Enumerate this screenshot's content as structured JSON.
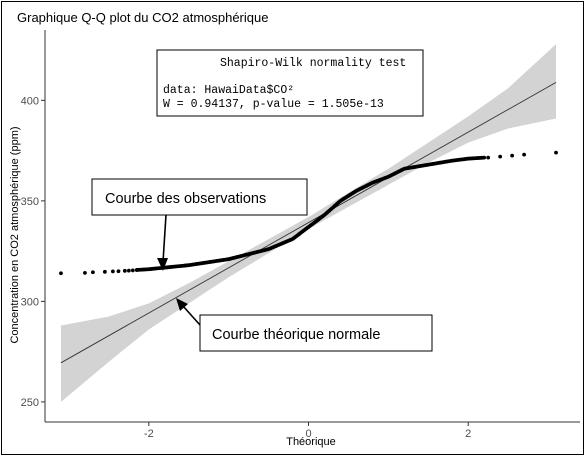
{
  "chart_data": {
    "type": "scatter",
    "title": "Graphique Q-Q plot du CO2 atmosphérique",
    "xlabel": "Théorique",
    "ylabel": "Concentration en CO2 atmosphérique (ppm)",
    "xlim": [
      -3.3,
      3.4
    ],
    "ylim": [
      240,
      435
    ],
    "xticks": [
      -2,
      0,
      2
    ],
    "yticks": [
      250,
      300,
      350,
      400
    ],
    "xtick_labels": [
      "-2",
      "0",
      "2"
    ],
    "ytick_labels": [
      "250",
      "300",
      "350",
      "400"
    ],
    "grid": false,
    "reference_line": {
      "intercept": 339.2,
      "slope": 22.5,
      "x_range": [
        -3.1,
        3.1
      ]
    },
    "confidence_band": {
      "x": [
        -3.1,
        -2.5,
        -2.0,
        -1.5,
        -1.0,
        -0.5,
        0.0,
        0.5,
        1.0,
        1.5,
        2.0,
        2.5,
        3.1
      ],
      "lower": [
        250.0,
        270.0,
        286.0,
        299.0,
        312.0,
        324.0,
        336.0,
        347.0,
        358.0,
        369.0,
        379.0,
        386.0,
        391.0
      ],
      "upper": [
        288.0,
        292.5,
        299.0,
        309.0,
        320.0,
        331.0,
        342.0,
        354.0,
        366.0,
        379.0,
        392.0,
        406.0,
        428.0
      ]
    },
    "observation_curve": {
      "x": [
        -3.1,
        -2.8,
        -2.5,
        -2.2,
        -2.0,
        -1.5,
        -1.0,
        -0.8,
        -0.5,
        -0.2,
        0.0,
        0.2,
        0.4,
        0.6,
        0.8,
        1.0,
        1.2,
        1.5,
        1.8,
        2.0,
        2.2,
        2.4,
        2.6,
        2.8,
        3.1
      ],
      "y": [
        314.0,
        314.5,
        315.0,
        315.5,
        316.0,
        318.0,
        321.0,
        323.0,
        326.0,
        331.0,
        337.0,
        343.0,
        350.0,
        355.0,
        359.0,
        362.0,
        366.0,
        368.0,
        370.0,
        371.0,
        371.5,
        372.0,
        372.5,
        373.0,
        374.0
      ]
    },
    "isolated_points": {
      "x": [
        -3.1,
        -2.8,
        -2.7,
        -2.55,
        -2.45,
        -2.38,
        -2.3,
        -2.25,
        -2.2,
        -2.15,
        2.25,
        2.4,
        2.55,
        2.7,
        3.1
      ],
      "y": [
        314.0,
        314.2,
        314.5,
        314.7,
        314.9,
        315.0,
        315.2,
        315.3,
        315.4,
        315.6,
        371.5,
        372.0,
        372.5,
        373.0,
        374.0
      ]
    },
    "annotations": {
      "stats_box": {
        "heading": "Shapiro-Wilk normality test",
        "line1": "data:  HawaiData$CO²",
        "line2": "W = 0.94137, p-value = 1.505e-13"
      },
      "observations_label": "Courbe des observations",
      "theoretical_label": "Courbe théorique normale"
    },
    "colors": {
      "band": "#d3d3d3",
      "points": "#000000",
      "line": "#333333"
    }
  }
}
